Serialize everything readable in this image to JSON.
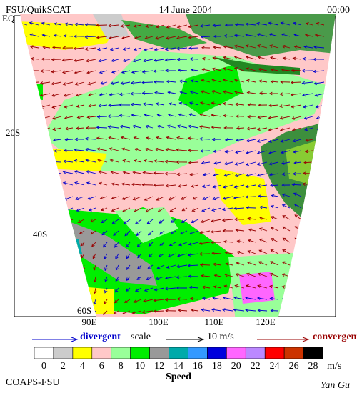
{
  "header": {
    "title": "FSU/QuikSCAT",
    "date": "14 June 2004",
    "time": "00:00"
  },
  "map": {
    "lat_labels": [
      "EQ",
      "20S",
      "40S",
      "60S"
    ],
    "lon_labels": [
      "90E",
      "100E",
      "110E",
      "120E"
    ]
  },
  "legend": {
    "divergent": "divergent",
    "scale": "scale",
    "scale_value": "10 m/s",
    "convergent": "convergent"
  },
  "colorbar": {
    "ticks": [
      0,
      2,
      4,
      6,
      8,
      10,
      12,
      14,
      16,
      18,
      20,
      22,
      24,
      26,
      28
    ],
    "colors": [
      "#ffffff",
      "#cccccc",
      "#ffff00",
      "#ffc8c8",
      "#99ff99",
      "#00ee00",
      "#999999",
      "#00aaaa",
      "#3399ff",
      "#0000dd",
      "#ff66ff",
      "#bb88ff",
      "#ff0000",
      "#cc3300",
      "#000000"
    ],
    "unit": "m/s",
    "label": "Speed"
  },
  "footer": {
    "left": "COAPS-FSU",
    "right": "Yan Gu"
  }
}
